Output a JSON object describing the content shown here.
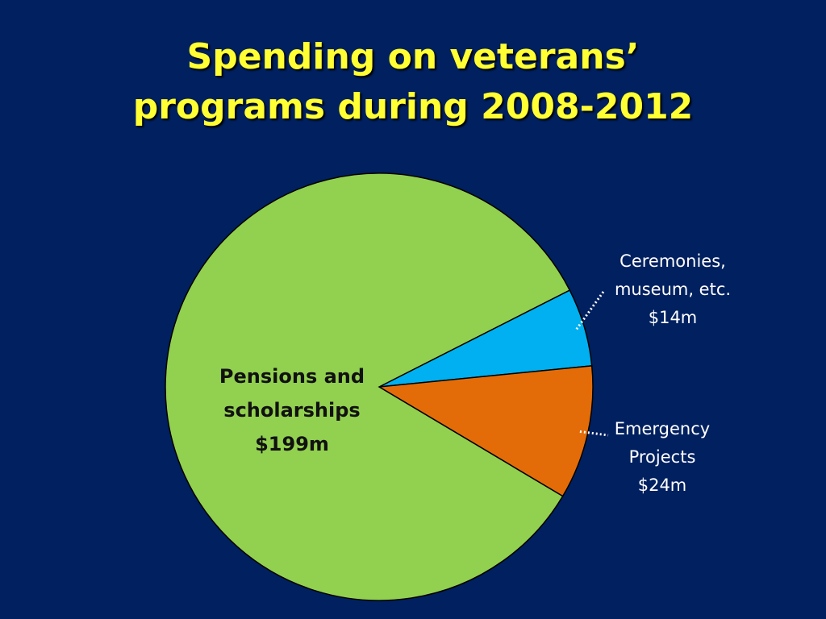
{
  "title": {
    "line1": "Spending on veterans’",
    "line2": "programs during 2008-2012"
  },
  "chart_data": {
    "type": "pie",
    "slices": [
      {
        "label_lines": [
          "Pensions and",
          "scholarships",
          "$199m"
        ],
        "value": 199,
        "color": "#92d050"
      },
      {
        "label_lines": [
          "Ceremonies,",
          "museum, etc.",
          "$14m"
        ],
        "value": 14,
        "color": "#00b0f0"
      },
      {
        "label_lines": [
          "Emergency",
          "Projects",
          "$24m"
        ],
        "value": 24,
        "color": "#e36c09"
      }
    ]
  },
  "colors": {
    "background": "#00205f",
    "title": "#ffff33",
    "leader_line": "#ffffff"
  }
}
